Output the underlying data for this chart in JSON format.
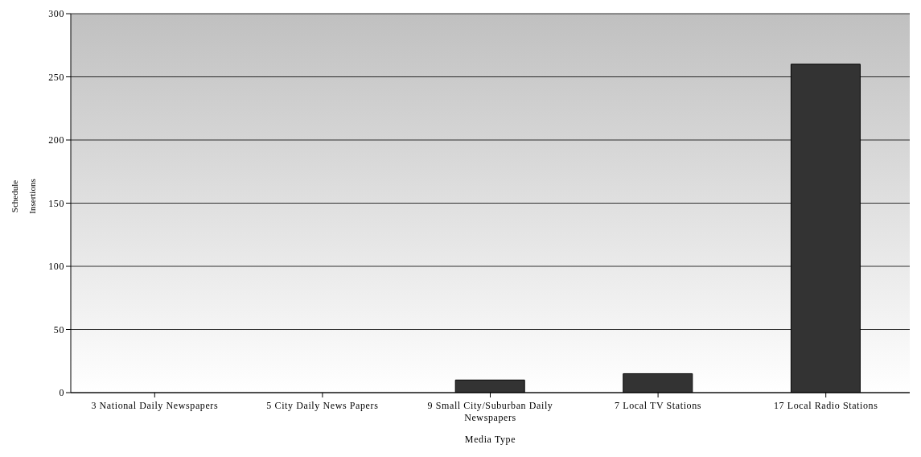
{
  "chart_data": {
    "type": "bar",
    "xlabel": "Media Type",
    "ylabel": "Schedule Insertions",
    "categories": [
      "3 National Daily Newspapers",
      "5 City Daily News Papers",
      "9 Small City/Suburban Daily Newspapers",
      "7 Local TV Stations",
      "17 Local Radio Stations"
    ],
    "values": [
      0,
      0,
      10,
      15,
      260
    ],
    "color": "#333333",
    "ylim": [
      0,
      300
    ],
    "yticks": [
      0,
      50,
      100,
      150,
      200,
      250,
      300
    ],
    "grid": "y"
  }
}
